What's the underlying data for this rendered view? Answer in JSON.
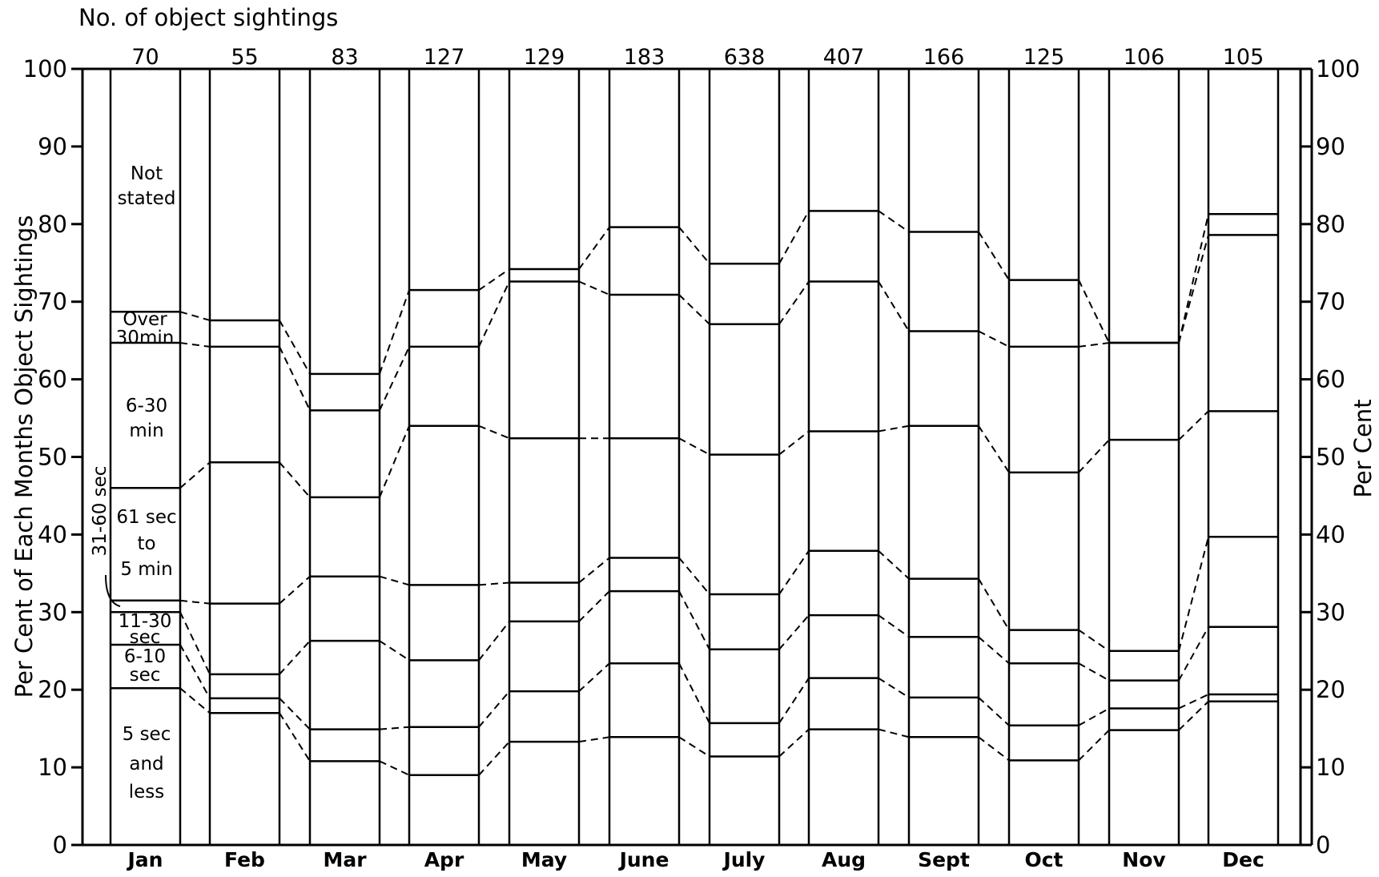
{
  "chart_data": {
    "type": "bar",
    "title": "No. of object sightings",
    "ylabel": "Per Cent of Each Months Object Sightings",
    "ylabel_right": "Per Cent",
    "ylim": [
      0,
      100
    ],
    "yticks": [
      "0",
      "10",
      "20",
      "30",
      "40",
      "50",
      "60",
      "70",
      "80",
      "90",
      "100"
    ],
    "categories": [
      "Jan",
      "Feb",
      "Mar",
      "Apr",
      "May",
      "June",
      "July",
      "Aug",
      "Sept",
      "Oct",
      "Nov",
      "Dec"
    ],
    "sightings": [
      "70",
      "55",
      "83",
      "127",
      "129",
      "183",
      "638",
      "407",
      "166",
      "125",
      "106",
      "105"
    ],
    "series": [
      {
        "name": "5 sec and less",
        "cumulative": [
          20.2,
          17.0,
          10.8,
          9.0,
          13.3,
          13.9,
          11.4,
          14.9,
          13.9,
          10.9,
          14.8,
          18.5
        ]
      },
      {
        "name": "6-10 sec",
        "cumulative": [
          25.8,
          18.9,
          14.9,
          15.2,
          19.8,
          23.4,
          15.7,
          21.5,
          19.0,
          15.4,
          17.6,
          19.4
        ]
      },
      {
        "name": "11-30 sec",
        "cumulative": [
          30.0,
          22.0,
          26.3,
          23.8,
          28.8,
          32.7,
          25.2,
          29.6,
          26.8,
          23.4,
          21.2,
          28.1
        ]
      },
      {
        "name": "31-60 sec",
        "cumulative": [
          31.5,
          31.1,
          34.6,
          33.5,
          33.8,
          37.0,
          32.3,
          37.9,
          34.3,
          27.7,
          25.0,
          39.7
        ]
      },
      {
        "name": "61 sec to 5 min",
        "cumulative": [
          46.0,
          49.3,
          44.8,
          54.0,
          52.4,
          52.4,
          50.3,
          53.3,
          54.0,
          48.0,
          52.2,
          55.9
        ]
      },
      {
        "name": "6-30 min",
        "cumulative": [
          64.7,
          64.2,
          56.0,
          64.2,
          72.6,
          70.9,
          67.1,
          72.6,
          66.2,
          64.2,
          64.7,
          78.6
        ]
      },
      {
        "name": "Over 30 min",
        "cumulative": [
          68.7,
          67.6,
          60.7,
          71.5,
          74.2,
          79.6,
          74.9,
          81.7,
          79.0,
          72.8,
          64.7,
          81.3
        ]
      },
      {
        "name": "Not stated",
        "cumulative": [
          100,
          100,
          100,
          100,
          100,
          100,
          100,
          100,
          100,
          100,
          100,
          100
        ]
      }
    ],
    "band_labels": {
      "not_stated_1": "Not",
      "not_stated_2": "stated",
      "over_30_1": "Over",
      "over_30_2": "30min",
      "six_30_1": "6-30",
      "six_30_2": "min",
      "sixty1_1": "61 sec",
      "sixty1_2": "to",
      "sixty1_3": "5 min",
      "thirty1": "31-60 sec",
      "eleven_1": "11-30",
      "eleven_2": "sec",
      "six10_1": "6-10",
      "six10_2": "sec",
      "five_1": "5 sec",
      "five_2": "and",
      "five_3": "less"
    },
    "grid": false,
    "legend": "none"
  }
}
